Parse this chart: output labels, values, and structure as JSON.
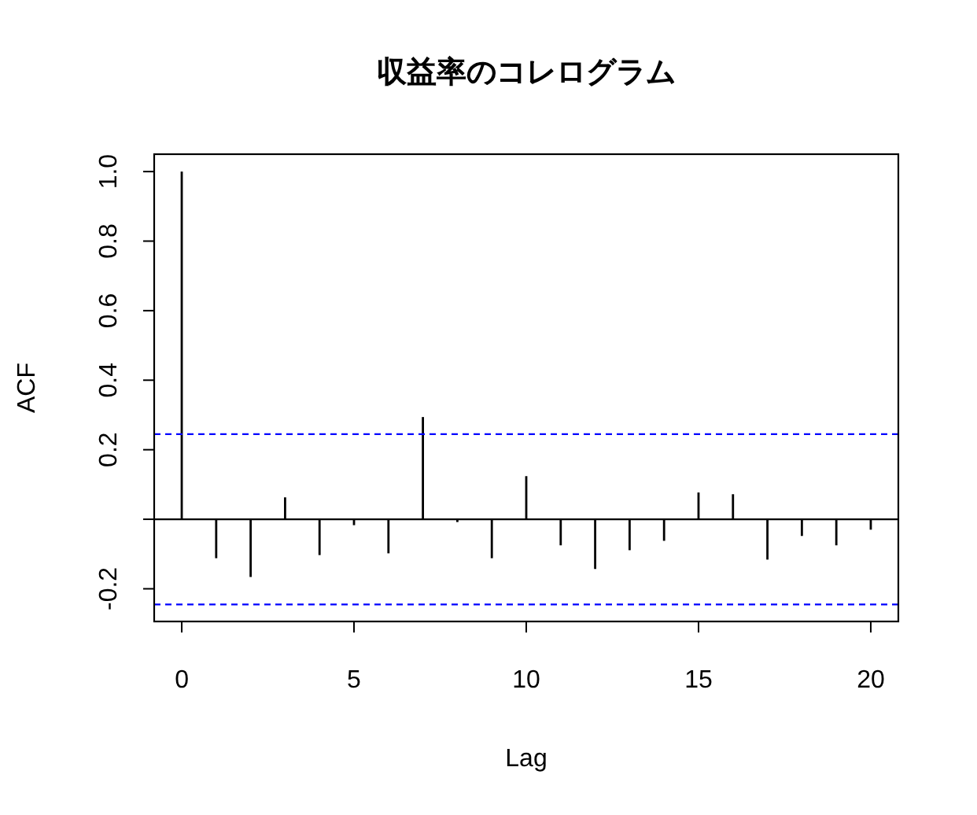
{
  "chart_data": {
    "type": "bar",
    "title": "収益率のコレログラム",
    "xlabel": "Lag",
    "ylabel": "ACF",
    "x": [
      0,
      1,
      2,
      3,
      4,
      5,
      6,
      7,
      8,
      9,
      10,
      11,
      12,
      13,
      14,
      15,
      16,
      17,
      18,
      19,
      20
    ],
    "values": [
      1.0,
      -0.112,
      -0.166,
      0.063,
      -0.103,
      -0.017,
      -0.098,
      0.294,
      -0.008,
      -0.112,
      0.124,
      -0.075,
      -0.143,
      -0.089,
      -0.062,
      0.077,
      0.072,
      -0.116,
      -0.048,
      -0.075,
      -0.03
    ],
    "color": "#000000",
    "xlim": [
      -0.8,
      20.8
    ],
    "ylim": [
      -0.294,
      1.05
    ],
    "xticks": [
      0,
      5,
      10,
      15,
      20
    ],
    "yticks": [
      {
        "value": -0.2,
        "label": "-0.2"
      },
      {
        "value": 0,
        "label": null
      },
      0.2,
      0.4,
      0.6,
      0.8,
      {
        "value": 1,
        "label": "1.0"
      }
    ],
    "ref_lines": [
      {
        "axis": "y",
        "value": 0,
        "color": "#000000",
        "line_style": "solid"
      },
      {
        "axis": "y",
        "value": 0.245,
        "color": "#0000ff",
        "line_style": "dashed"
      },
      {
        "axis": "y",
        "value": -0.245,
        "color": "#0000ff",
        "line_style": "dashed"
      }
    ],
    "grid": false
  }
}
